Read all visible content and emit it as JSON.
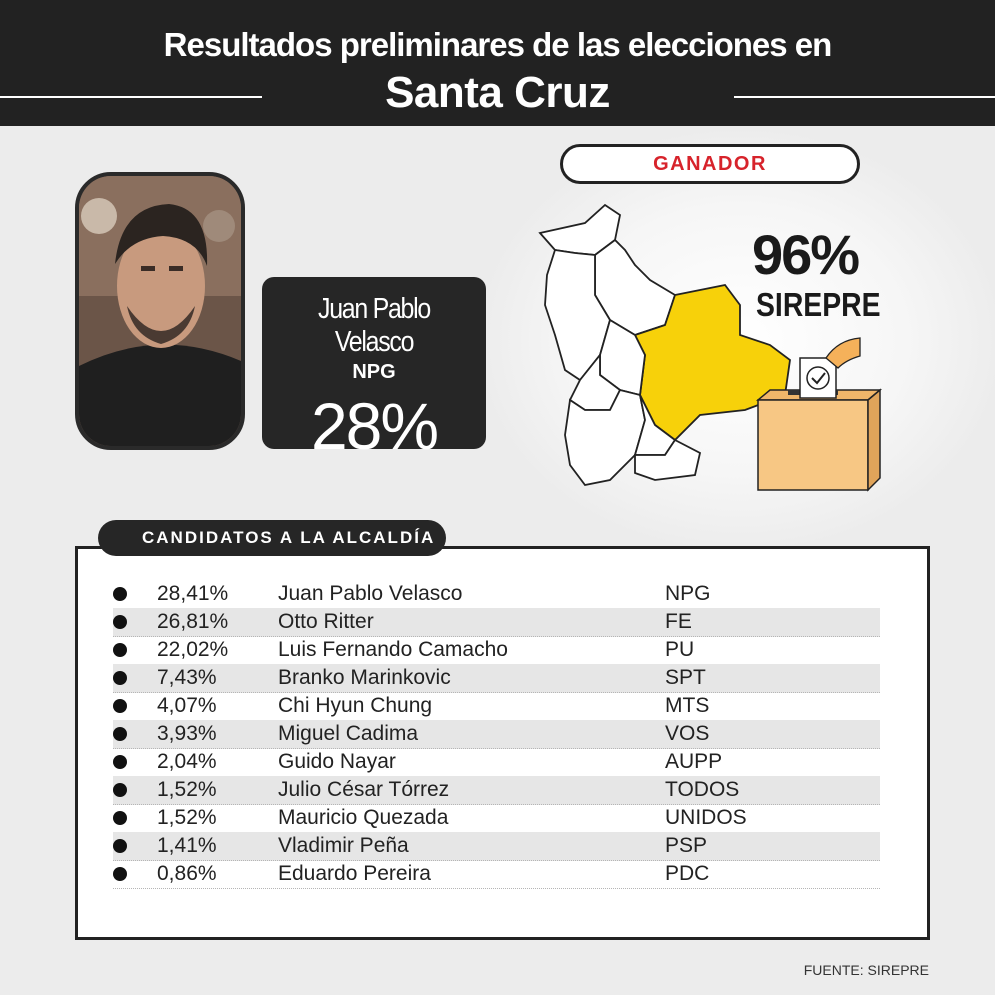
{
  "header": {
    "title_line1": "Resultados preliminares de las elecciones en",
    "title_line2": "Santa Cruz"
  },
  "winner": {
    "name": "Juan Pablo Velasco",
    "party": "NPG",
    "percent": "28%"
  },
  "count": {
    "label": "GANADOR",
    "percent": "96%",
    "source": "SIREPRE"
  },
  "colors": {
    "highlight_region": "#f7d10a",
    "dark": "#222222",
    "accent_red": "#d7232b"
  },
  "table": {
    "title": "CANDIDATOS A LA ALCALDÍA",
    "rows": [
      {
        "percent": "28,41%",
        "name": "Juan Pablo Velasco",
        "party": "NPG"
      },
      {
        "percent": "26,81%",
        "name": "Otto Ritter",
        "party": "FE"
      },
      {
        "percent": "22,02%",
        "name": "Luis Fernando Camacho",
        "party": "PU"
      },
      {
        "percent": "7,43%",
        "name": "Branko Marinkovic",
        "party": "SPT"
      },
      {
        "percent": "4,07%",
        "name": "Chi Hyun Chung",
        "party": "MTS"
      },
      {
        "percent": "3,93%",
        "name": "Miguel Cadima",
        "party": "VOS"
      },
      {
        "percent": "2,04%",
        "name": "Guido Nayar",
        "party": "AUPP"
      },
      {
        "percent": "1,52%",
        "name": "Julio César Tórrez",
        "party": "TODOS"
      },
      {
        "percent": "1,52%",
        "name": "Mauricio Quezada",
        "party": "UNIDOS"
      },
      {
        "percent": "1,41%",
        "name": "Vladimir Peña",
        "party": "PSP"
      },
      {
        "percent": "0,86%",
        "name": "Eduardo Pereira",
        "party": "PDC"
      }
    ]
  },
  "footer": {
    "source": "FUENTE: SIREPRE"
  }
}
